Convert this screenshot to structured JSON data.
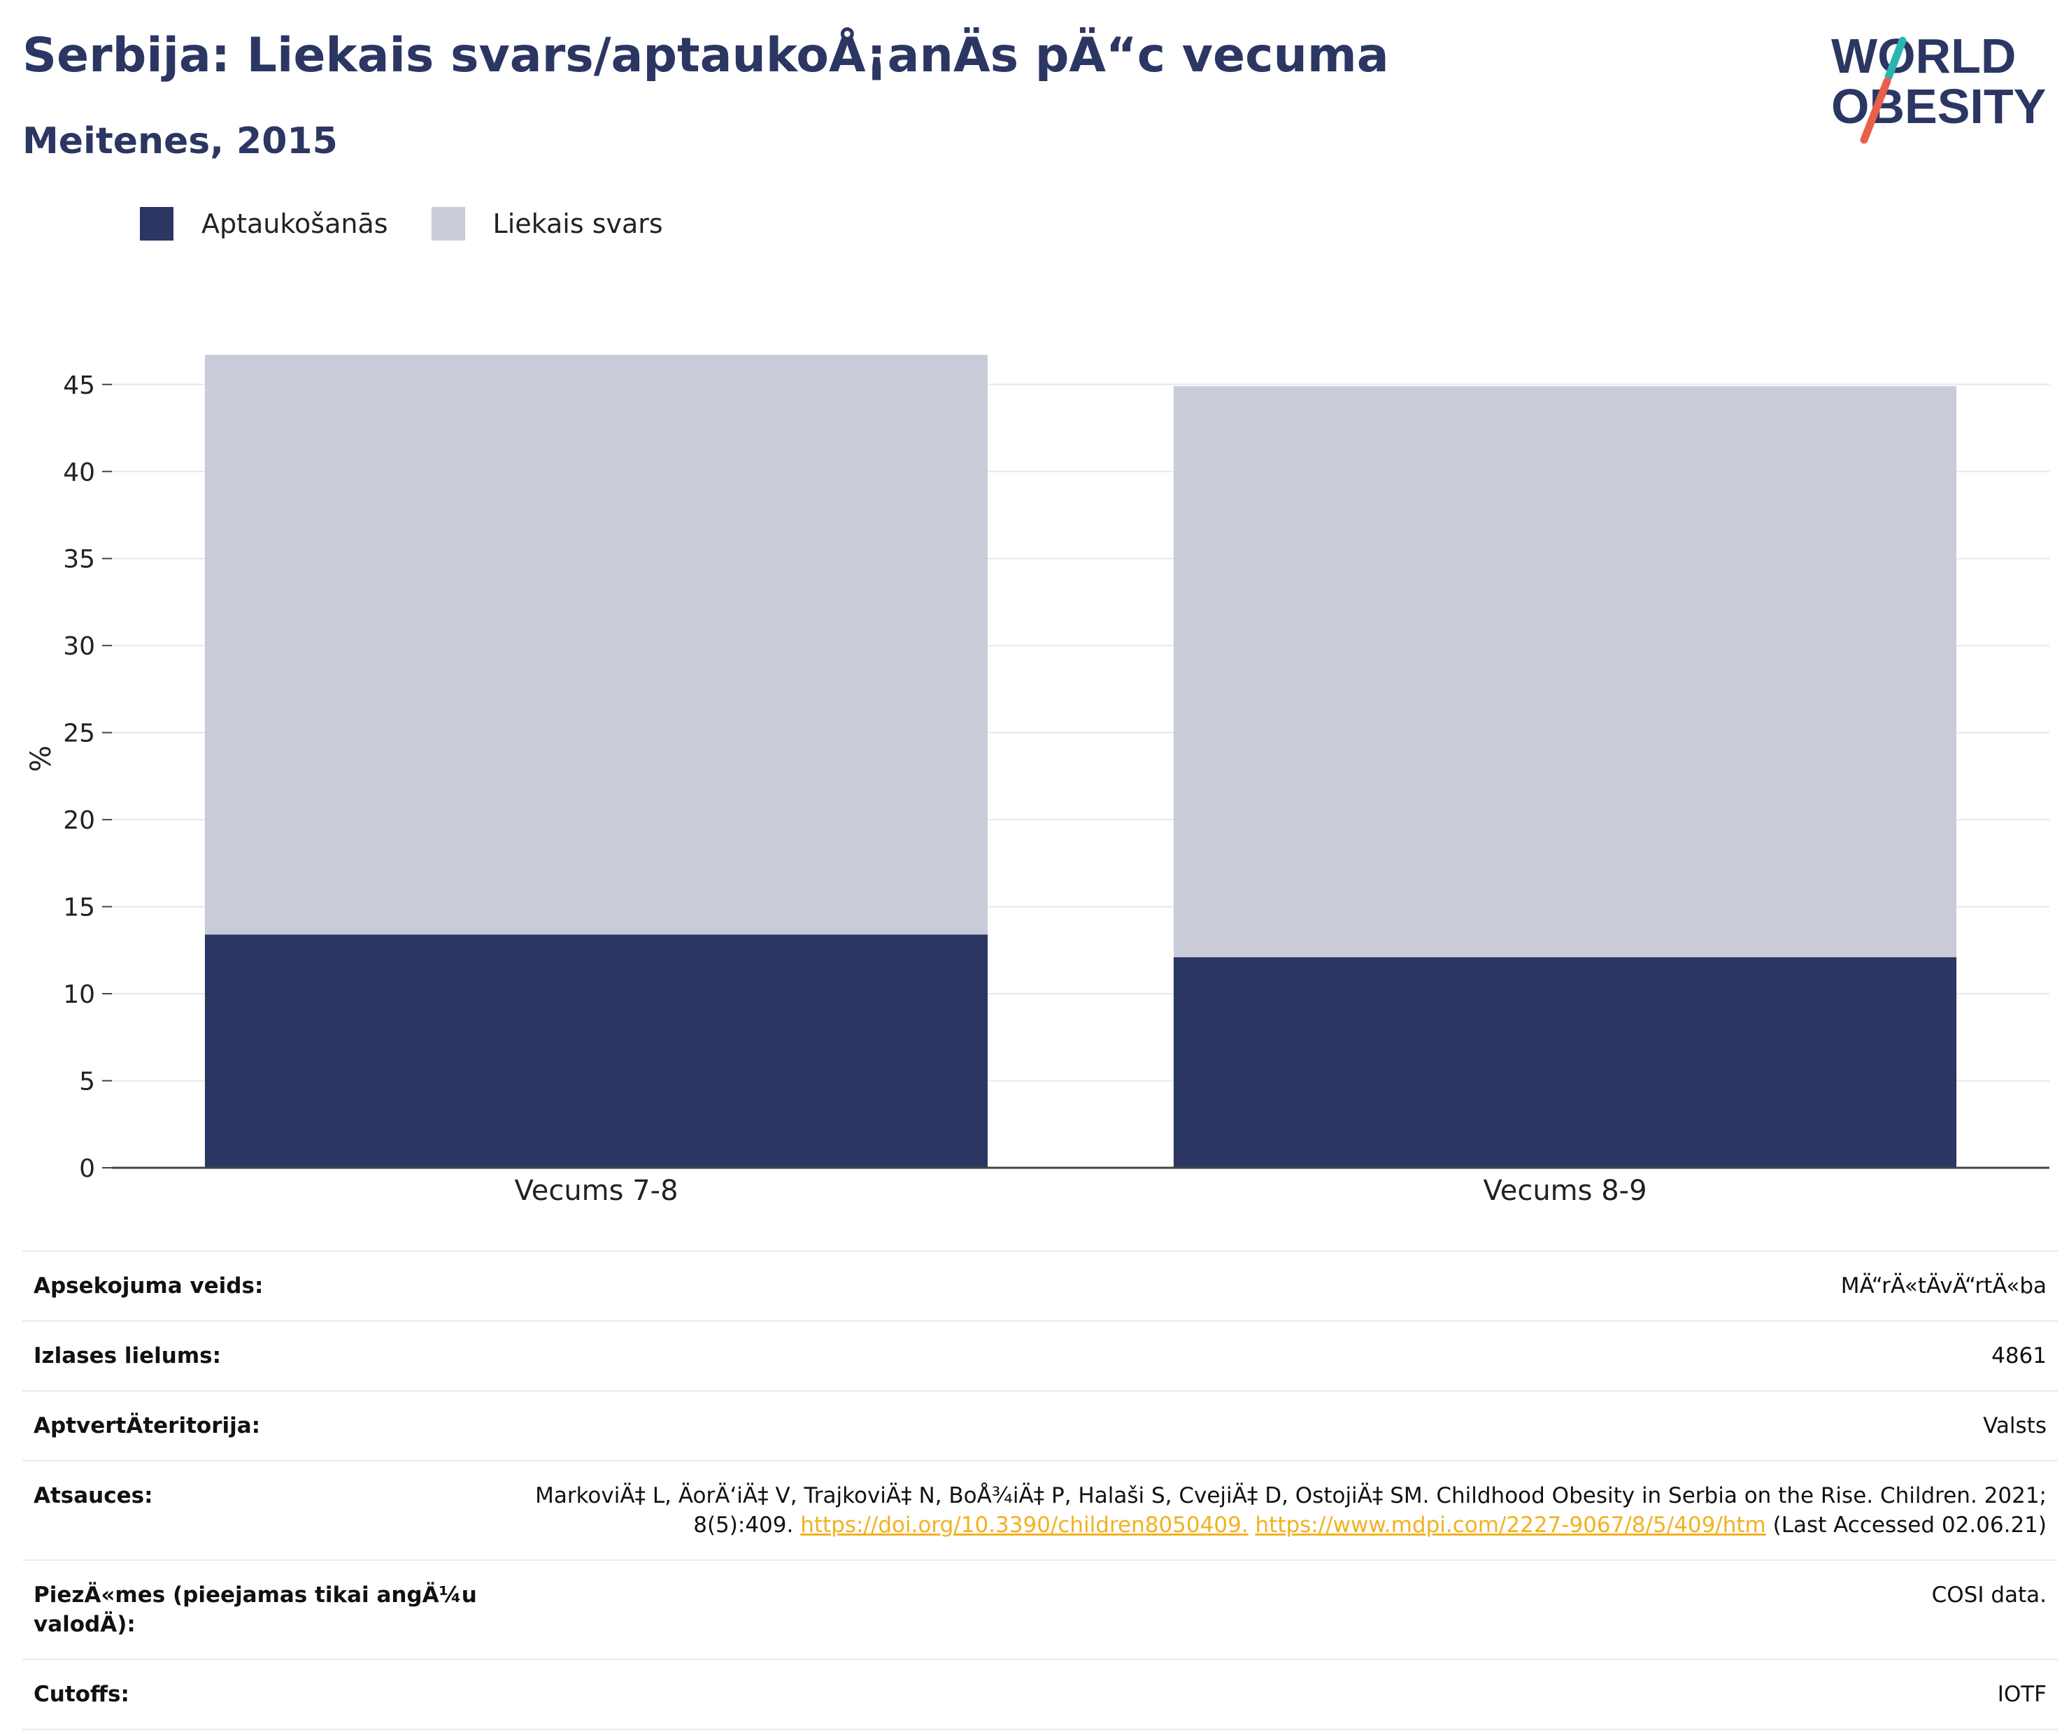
{
  "header": {
    "title": "Serbija: Liekais svars/aptaukoÅ¡anÄs pÄ“c vecuma",
    "subtitle": "Meitenes, 2015"
  },
  "logo": {
    "line1": "WORLD",
    "line2": "OBESITY",
    "colors": {
      "text": "#2b3662",
      "slash_top": "#2bb5b0",
      "slash_bottom": "#e8604c"
    }
  },
  "legend": [
    {
      "label": "Aptaukošanās",
      "color": "#2b3662"
    },
    {
      "label": "Liekais svars",
      "color": "#c9ccd8"
    }
  ],
  "chart_data": {
    "type": "bar",
    "stacked": true,
    "categories": [
      "Vecums 7-8",
      "Vecums 8-9"
    ],
    "series": [
      {
        "name": "Aptaukošanās",
        "values": [
          13.4,
          12.1
        ],
        "color": "#2b3662"
      },
      {
        "name": "Liekais svars",
        "values": [
          33.3,
          32.8
        ],
        "color": "#c9ccd8"
      }
    ],
    "ylabel": "%",
    "ylim": [
      0,
      47
    ],
    "yticks": [
      0,
      5,
      10,
      15,
      20,
      25,
      30,
      35,
      40,
      45
    ],
    "grid": true
  },
  "info": {
    "survey_type": {
      "label": "Apsekojuma veids:",
      "value": "MÄ“rÄ«tÄvÄ“rtÄ«ba"
    },
    "sample_size": {
      "label": "Izlases lielums:",
      "value": "4861"
    },
    "coverage": {
      "label": "AptvertÄteritorija:",
      "value": "Valsts"
    },
    "references": {
      "label": "Atsauces:",
      "text_before": "MarkoviÄ‡ L, ÄorÄ‘iÄ‡ V, TrajkoviÄ‡ N, BoÅ¾iÄ‡ P, Halaši S, CvejiÄ‡ D, OstojiÄ‡ SM. Childhood Obesity in Serbia on the Rise. Children. 2021; 8(5):409. ",
      "link1": "https://doi.org/10.3390/children8050409.",
      "link2": "https://www.mdpi.com/2227-9067/8/5/409/htm",
      "text_after": " (Last Accessed 02.06.21)"
    },
    "notes": {
      "label": "PiezÄ«mes (pieejamas tikai angÄ¼u valodÄ):",
      "value": "COSI data."
    },
    "cutoffs": {
      "label": "Cutoffs:",
      "value": "IOTF"
    }
  }
}
